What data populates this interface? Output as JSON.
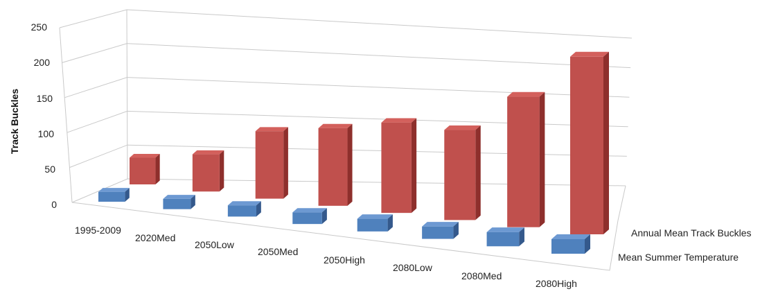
{
  "chart_data": {
    "type": "bar",
    "subtype": "3d-column",
    "title": "",
    "ylabel": "Track Buckles",
    "ylim": [
      0,
      250
    ],
    "yticks": [
      "250",
      "200",
      "150",
      "100",
      "50",
      "0"
    ],
    "grid": true,
    "categories": [
      "1995-2009",
      "2020Med",
      "2050Low",
      "2050Med",
      "2050High",
      "2080Low",
      "2080Med",
      "2080High"
    ],
    "series": [
      {
        "name": "Mean Summer Temperature",
        "color": "#4f81bd",
        "values": [
          17,
          17,
          18,
          18,
          19,
          18,
          20,
          20
        ]
      },
      {
        "name": "Annual Mean Track Buckles",
        "color": "#c0504d",
        "values": [
          47,
          63,
          110,
          122,
          137,
          132,
          185,
          244
        ]
      }
    ]
  }
}
